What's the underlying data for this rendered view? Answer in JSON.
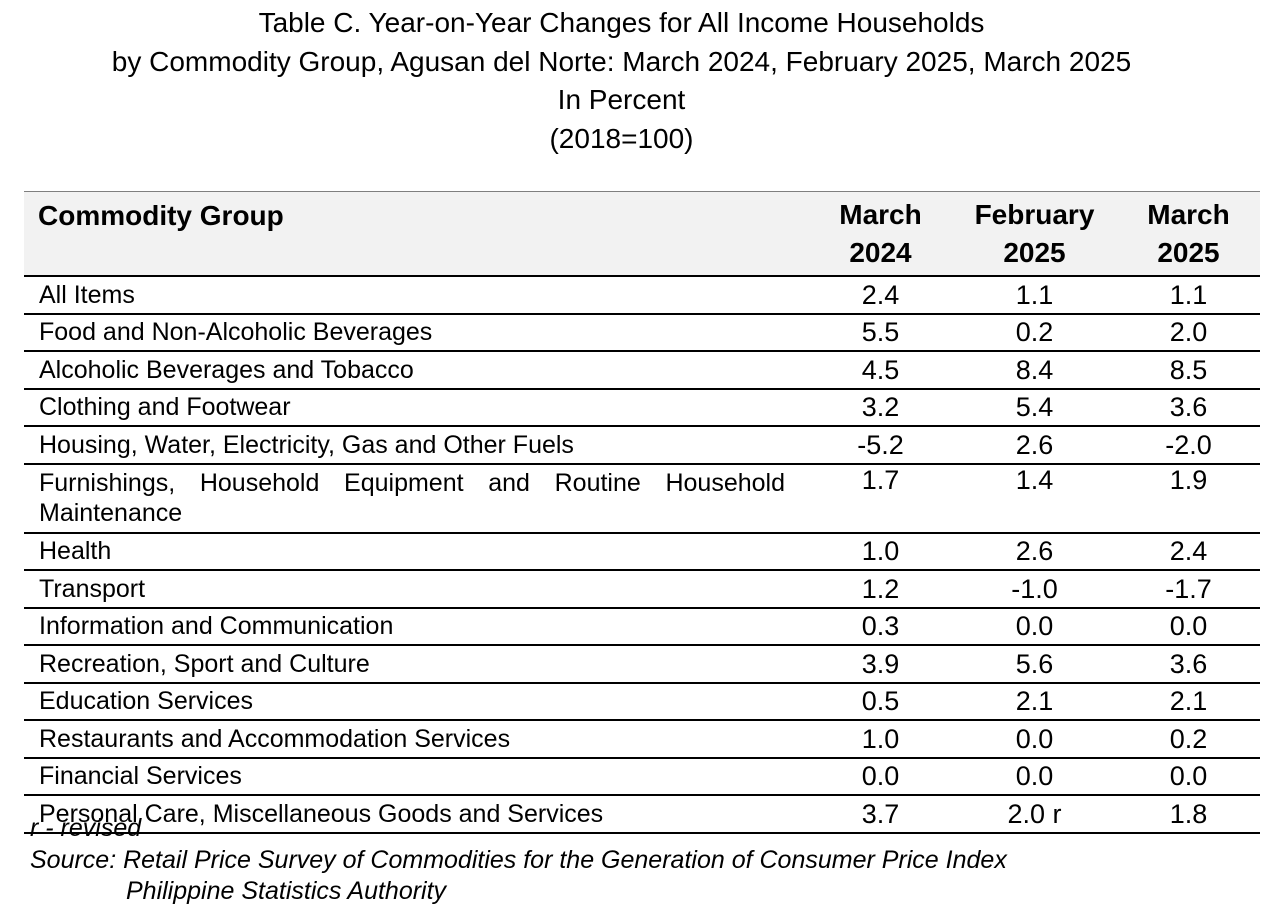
{
  "title": {
    "line1": "Table C. Year-on-Year Changes for All Income Households",
    "line2": "by Commodity Group, Agusan del Norte: March 2024, February 2025, March 2025",
    "line3": "In Percent",
    "line4": "(2018=100)"
  },
  "table": {
    "header": {
      "name": "Commodity Group",
      "col1": [
        "March",
        "2024"
      ],
      "col2": [
        "February",
        "2025"
      ],
      "col3": [
        "March",
        "2025"
      ]
    },
    "rows": [
      {
        "name": "All Items",
        "v": [
          "2.4",
          "1.1",
          "1.1"
        ]
      },
      {
        "name": "Food and Non-Alcoholic Beverages",
        "v": [
          "5.5",
          "0.2",
          "2.0"
        ]
      },
      {
        "name": "Alcoholic Beverages and Tobacco",
        "v": [
          "4.5",
          "8.4",
          "8.5"
        ]
      },
      {
        "name": "Clothing and Footwear",
        "v": [
          "3.2",
          "5.4",
          "3.6"
        ]
      },
      {
        "name": "Housing, Water, Electricity, Gas and Other Fuels",
        "v": [
          "-5.2",
          "2.6",
          "-2.0"
        ]
      },
      {
        "name": "Furnishings, Household Equipment and Routine Household Maintenance",
        "v": [
          "1.7",
          "1.4",
          "1.9"
        ]
      },
      {
        "name": "Health",
        "v": [
          "1.0",
          "2.6",
          "2.4"
        ]
      },
      {
        "name": "Transport",
        "v": [
          "1.2",
          "-1.0",
          "-1.7"
        ]
      },
      {
        "name": "Information and Communication",
        "v": [
          "0.3",
          "0.0",
          "0.0"
        ]
      },
      {
        "name": "Recreation, Sport and Culture",
        "v": [
          "3.9",
          "5.6",
          "3.6"
        ]
      },
      {
        "name": "Education Services",
        "v": [
          "0.5",
          "2.1",
          "2.1"
        ]
      },
      {
        "name": "Restaurants and Accommodation Services",
        "v": [
          "1.0",
          "0.0",
          "0.2"
        ]
      },
      {
        "name": "Financial Services",
        "v": [
          "0.0",
          "0.0",
          "0.0"
        ]
      },
      {
        "name": "Personal Care, Miscellaneous Goods and Services",
        "v": [
          "3.7",
          "2.0 r",
          "1.8"
        ]
      }
    ]
  },
  "footnotes": {
    "revised": "r - revised",
    "source": "Source: Retail Price Survey of Commodities for the Generation of Consumer Price Index",
    "agency": "Philippine Statistics Authority"
  }
}
